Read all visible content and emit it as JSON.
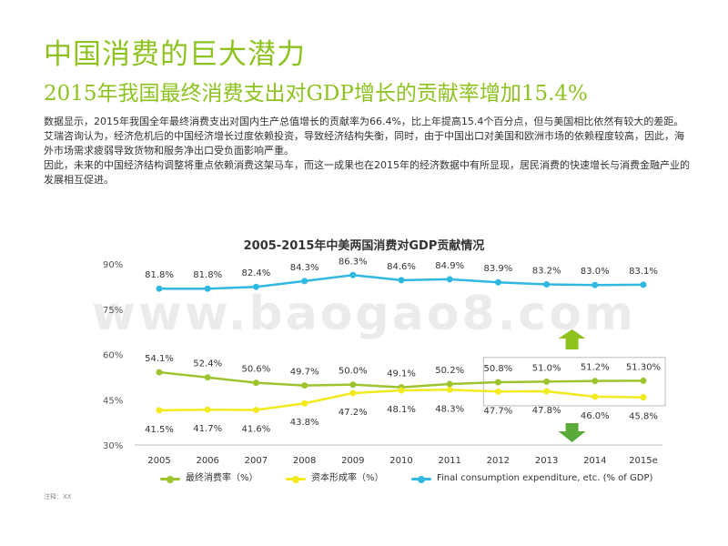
{
  "page": {
    "title": "中国消费的巨大潜力",
    "subtitle": "2015年我国最终消费支出对GDP增长的贡献率增加15.4%",
    "paragraphs": [
      "数据显示，2015年我国全年最终消费支出对国内生产总值增长的贡献率为66.4%，比上年提高15.4个百分点，但与美国相比依然有较大的差距。",
      "艾瑞咨询认为，经济危机后的中国经济增长过度依赖投资，导致经济结构失衡，同时，由于中国出口对美国和欧洲市场的依赖程度较高，因此，海外市场需求疲弱导致货物和服务净出口受负面影响严重。",
      "因此，未来的中国经济结构调整将重点依赖消费这架马车，而这一成果也在2015年的经济数据中有所显现，居民消费的快速增长与消费金融产业的发展相互促进。"
    ],
    "note": "注释：XX",
    "watermark": "www.baogao8.com"
  },
  "chart_data": {
    "type": "line",
    "title": "2005-2015年中美两国消费对GDP贡献情况",
    "categories": [
      "2005",
      "2006",
      "2007",
      "2008",
      "2009",
      "2010",
      "2011",
      "2012",
      "2013",
      "2014",
      "2015e"
    ],
    "y_ticks": [
      "30%",
      "45%",
      "60%",
      "75%",
      "90%"
    ],
    "ylim": [
      30,
      90
    ],
    "grid": false,
    "legend_position": "bottom",
    "series": [
      {
        "name": "最终消费率（%）",
        "color": "#9dc42f",
        "values": [
          54.1,
          52.4,
          50.6,
          49.7,
          50.0,
          49.1,
          50.2,
          50.8,
          51.0,
          51.2,
          51.3
        ],
        "labels": [
          "54.1%",
          "52.4%",
          "50.6%",
          "49.7%",
          "50.0%",
          "49.1%",
          "50.2%",
          "50.8%",
          "51.0%",
          "51.2%",
          "51.30%"
        ],
        "label_side": "above"
      },
      {
        "name": "资本形成率（%）",
        "color": "#f2ea1e",
        "values": [
          41.5,
          41.7,
          41.6,
          43.8,
          47.2,
          48.1,
          48.3,
          47.7,
          47.8,
          46.0,
          45.8
        ],
        "labels": [
          "41.5%",
          "41.7%",
          "41.6%",
          "43.8%",
          "47.2%",
          "48.1%",
          "48.3%",
          "47.7%",
          "47.8%",
          "46.0%",
          "45.8%"
        ],
        "label_side": "below"
      },
      {
        "name": "Final consumption expenditure, etc. (% of GDP)",
        "color": "#30b8e0",
        "values": [
          81.8,
          81.8,
          82.4,
          84.3,
          86.3,
          84.6,
          84.9,
          83.9,
          83.2,
          83.0,
          83.1
        ],
        "labels": [
          "81.8%",
          "81.8%",
          "82.4%",
          "84.3%",
          "86.3%",
          "84.6%",
          "84.9%",
          "83.9%",
          "83.2%",
          "83.0%",
          "83.1%"
        ],
        "label_side": "above"
      }
    ],
    "annotations": [
      {
        "kind": "highlight-box",
        "from_category": "2012",
        "to_category": "2015e",
        "y_range": [
          43,
          59
        ],
        "color": "#bbbbbb"
      },
      {
        "kind": "arrow-up",
        "category": "2013",
        "color": "#8dc21f"
      },
      {
        "kind": "arrow-down",
        "category": "2013",
        "color": "#5aaa3a"
      }
    ]
  }
}
